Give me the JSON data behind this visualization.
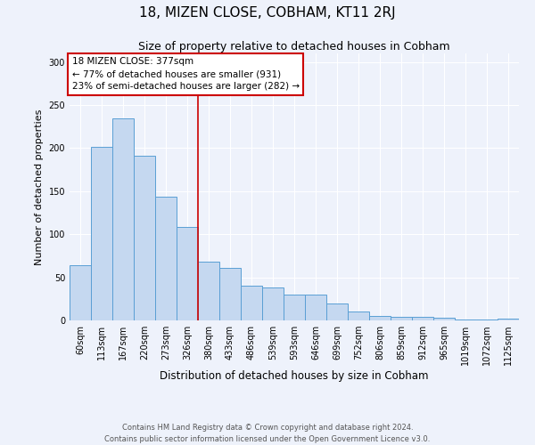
{
  "title": "18, MIZEN CLOSE, COBHAM, KT11 2RJ",
  "subtitle": "Size of property relative to detached houses in Cobham",
  "xlabel": "Distribution of detached houses by size in Cobham",
  "ylabel": "Number of detached properties",
  "bar_labels": [
    "60sqm",
    "113sqm",
    "167sqm",
    "220sqm",
    "273sqm",
    "326sqm",
    "380sqm",
    "433sqm",
    "486sqm",
    "539sqm",
    "593sqm",
    "646sqm",
    "699sqm",
    "752sqm",
    "806sqm",
    "859sqm",
    "912sqm",
    "965sqm",
    "1019sqm",
    "1072sqm",
    "1125sqm"
  ],
  "bar_values": [
    64,
    202,
    235,
    191,
    144,
    108,
    68,
    61,
    40,
    38,
    30,
    30,
    20,
    10,
    5,
    4,
    4,
    3,
    1,
    1,
    2
  ],
  "bar_color": "#c5d8f0",
  "bar_edge_color": "#5a9fd4",
  "ylim": [
    0,
    310
  ],
  "yticks": [
    0,
    50,
    100,
    150,
    200,
    250,
    300
  ],
  "vline_index": 6,
  "vline_color": "#cc0000",
  "annotation_title": "18 MIZEN CLOSE: 377sqm",
  "annotation_line1": "← 77% of detached houses are smaller (931)",
  "annotation_line2": "23% of semi-detached houses are larger (282) →",
  "annotation_box_color": "#ffffff",
  "annotation_box_edge": "#cc0000",
  "footer1": "Contains HM Land Registry data © Crown copyright and database right 2024.",
  "footer2": "Contains public sector information licensed under the Open Government Licence v3.0.",
  "background_color": "#eef2fb",
  "grid_color": "#ffffff"
}
